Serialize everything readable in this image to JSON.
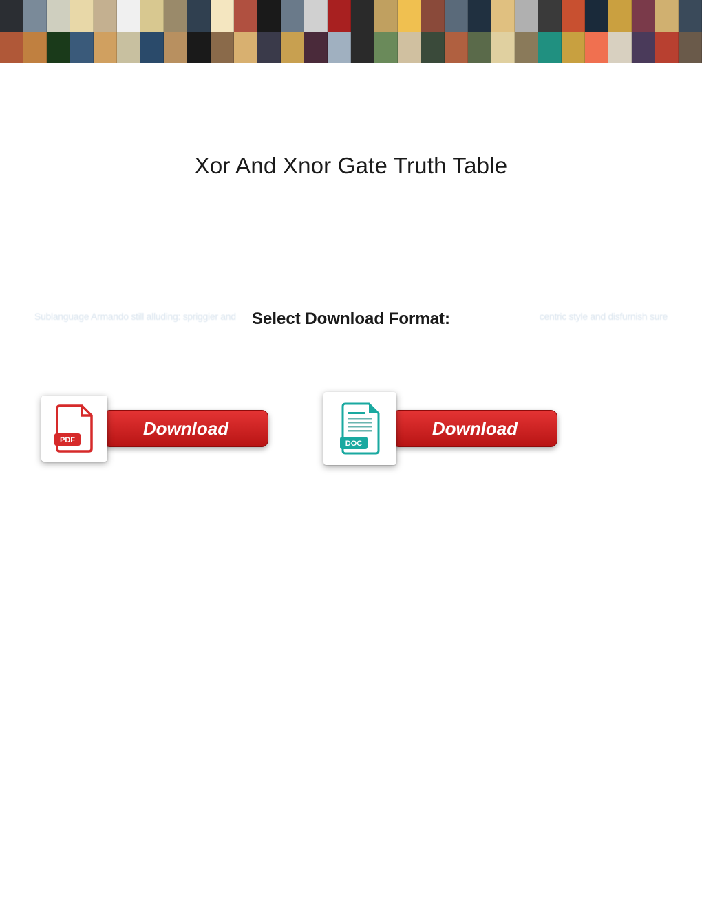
{
  "banner": {
    "rows": 2,
    "cols": 30,
    "colors_row1": [
      "#2b2e33",
      "#7a8a99",
      "#cfcfbf",
      "#e8d8a8",
      "#c4b090",
      "#f0f0f0",
      "#d8c890",
      "#9a8a6a",
      "#304050",
      "#f4e6c0",
      "#b05040",
      "#1a1a1a",
      "#6a7a8a",
      "#d0d0d0",
      "#a82020",
      "#2a2a2a",
      "#c0a060",
      "#f0c050",
      "#8a4a3a",
      "#5a6a7a",
      "#203040",
      "#e0c080",
      "#b0b0b0",
      "#3a3a3a",
      "#c85030",
      "#1a2a3a",
      "#caa040",
      "#7a3a4a",
      "#d0b070",
      "#3a4a5a"
    ],
    "colors_row2": [
      "#b05838",
      "#c08040",
      "#1a3a1a",
      "#3a5a7a",
      "#d0a060",
      "#c8c0a0",
      "#2a4a6a",
      "#b89060",
      "#1a1a1a",
      "#8a6a4a",
      "#d8b070",
      "#3a3a4a",
      "#c8a050",
      "#4a2a3a",
      "#a0b0c0",
      "#2a2a2a",
      "#6a8a5a",
      "#d0c0a0",
      "#3a4a3a",
      "#b06040",
      "#5a6a4a",
      "#e0d0a0",
      "#8a7a5a",
      "#209080",
      "#c8a040",
      "#f07050",
      "#d8d0c0",
      "#4a3a5a",
      "#b84030",
      "#6a5a4a"
    ]
  },
  "title": "Xor And Xnor Gate Truth Table",
  "format_label": "Select Download Format:",
  "ghost_left": "Sublanguage Armando still alluding: spriggier and",
  "ghost_right": "centric style and disfurnish sure",
  "download_label": "Download",
  "pdf": {
    "badge": "PDF",
    "stroke": "#d62a2a",
    "fill": "#ffffff"
  },
  "doc": {
    "badge": "DOC",
    "accent": "#1aa9a0",
    "line": "#6ab5b0"
  },
  "pill": {
    "bg_top": "#e43434",
    "bg_bottom": "#b81414",
    "text_color": "#ffffff"
  }
}
